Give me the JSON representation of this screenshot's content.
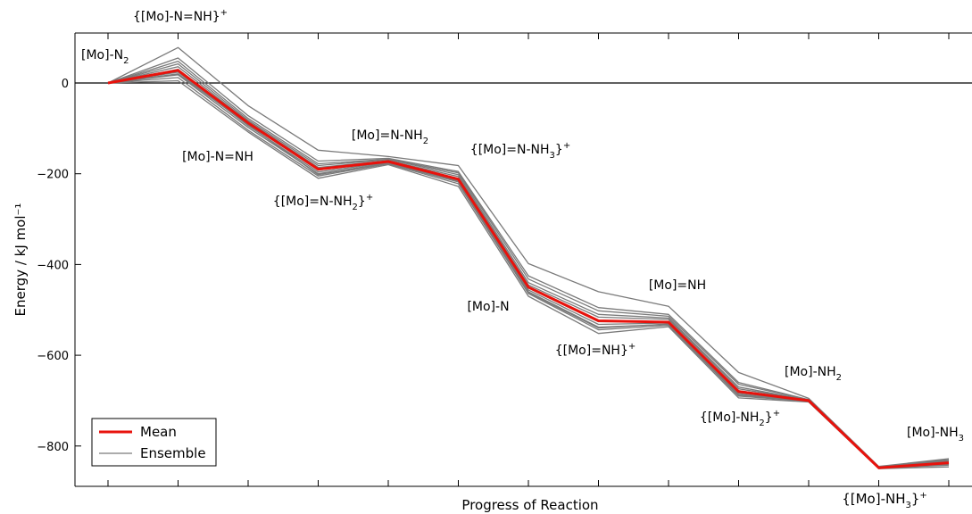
{
  "chart_data": {
    "type": "line",
    "xlabel": "Progress of Reaction",
    "ylabel": "Energy / kJ mol⁻¹",
    "ylim": [
      -890,
      112
    ],
    "yticks": [
      0,
      -200,
      -400,
      -600,
      -800
    ],
    "grid": false,
    "zero_line": true,
    "legend": {
      "placement": "lower-left",
      "entries": [
        {
          "label": "Mean",
          "color": "#e8120c"
        },
        {
          "label": "Ensemble",
          "color": "#7a7a7a"
        }
      ]
    },
    "steps": [
      {
        "label": "[Mo]-N₂"
      },
      {
        "label": "{[Mo]-N=NH}⁺"
      },
      {
        "label": "[Mo]-N=NH"
      },
      {
        "label": "{[Mo]=N-NH₂}⁺"
      },
      {
        "label": "[Mo]=N-NH₂"
      },
      {
        "label": "{[Mo]=N-NH₃}⁺"
      },
      {
        "label": "[Mo]-N"
      },
      {
        "label": "{[Mo]=NH}⁺"
      },
      {
        "label": "[Mo]=NH"
      },
      {
        "label": "{[Mo]-NH₂}⁺"
      },
      {
        "label": "[Mo]-NH₂"
      },
      {
        "label": "{[Mo]-NH₃}⁺"
      },
      {
        "label": "[Mo]-NH₃"
      }
    ],
    "series": [
      {
        "name": "Mean",
        "color": "#e8120c",
        "values": [
          0,
          28,
          -88,
          -190,
          -173,
          -212,
          -450,
          -524,
          -527,
          -680,
          -700,
          -848,
          -837
        ]
      },
      {
        "name": "Ensemble",
        "color": "#7a7a7a",
        "values": [
          0,
          78,
          -50,
          -148,
          -162,
          -182,
          -398,
          -460,
          -492,
          -638,
          -695,
          -845,
          -828
        ]
      },
      {
        "values": [
          0,
          55,
          -72,
          -172,
          -166,
          -195,
          -425,
          -495,
          -510,
          -660,
          -698,
          -846,
          -830
        ]
      },
      {
        "values": [
          0,
          48,
          -78,
          -178,
          -168,
          -198,
          -432,
          -502,
          -514,
          -664,
          -698,
          -846,
          -832
        ]
      },
      {
        "values": [
          0,
          42,
          -82,
          -182,
          -169,
          -202,
          -440,
          -510,
          -518,
          -670,
          -699,
          -847,
          -834
        ]
      },
      {
        "values": [
          0,
          36,
          -85,
          -186,
          -171,
          -206,
          -445,
          -516,
          -521,
          -674,
          -699,
          -847,
          -835
        ]
      },
      {
        "values": [
          0,
          30,
          -90,
          -192,
          -174,
          -210,
          -452,
          -526,
          -526,
          -678,
          -700,
          -848,
          -836
        ]
      },
      {
        "values": [
          0,
          24,
          -94,
          -196,
          -175,
          -214,
          -456,
          -532,
          -529,
          -683,
          -701,
          -848,
          -838
        ]
      },
      {
        "values": [
          0,
          18,
          -98,
          -200,
          -177,
          -218,
          -460,
          -538,
          -532,
          -686,
          -701,
          -849,
          -840
        ]
      },
      {
        "values": [
          0,
          12,
          -104,
          -205,
          -178,
          -222,
          -464,
          -544,
          -534,
          -690,
          -702,
          -849,
          -842
        ]
      },
      {
        "values": [
          0,
          5,
          -108,
          -210,
          -180,
          -228,
          -470,
          -552,
          -537,
          -694,
          -703,
          -850,
          -846
        ]
      },
      {
        "values": [
          0,
          20,
          -92,
          -202,
          -176,
          -216,
          -462,
          -540,
          -531,
          -688,
          -701,
          -849,
          -841
        ]
      }
    ]
  }
}
